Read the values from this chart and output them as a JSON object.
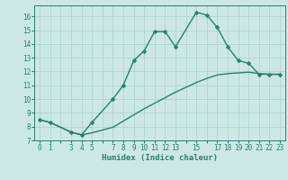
{
  "xlabel": "Humidex (Indice chaleur)",
  "bg_color": "#cce8e5",
  "line_color": "#2d7d72",
  "markersize": 2.5,
  "linewidth": 1.0,
  "series1_x": [
    0,
    1,
    3,
    4,
    5,
    7,
    8,
    9,
    10,
    11,
    12,
    13,
    15,
    16,
    17,
    18,
    19,
    20,
    21,
    22,
    23
  ],
  "series1_y": [
    8.5,
    8.3,
    7.6,
    7.4,
    8.3,
    10.0,
    11.0,
    12.8,
    13.5,
    14.9,
    14.9,
    13.8,
    16.3,
    16.1,
    15.2,
    13.8,
    12.8,
    12.6,
    11.8,
    11.8,
    11.8
  ],
  "series2_x": [
    0,
    1,
    3,
    4,
    5,
    7,
    8,
    9,
    10,
    11,
    12,
    13,
    15,
    16,
    17,
    18,
    19,
    20,
    21,
    22,
    23
  ],
  "series2_y": [
    8.5,
    8.3,
    7.6,
    7.4,
    7.55,
    7.95,
    8.4,
    8.85,
    9.3,
    9.7,
    10.1,
    10.5,
    11.2,
    11.5,
    11.75,
    11.85,
    11.9,
    11.95,
    11.85,
    11.8,
    11.8
  ],
  "xlim": [
    -0.5,
    23.5
  ],
  "ylim": [
    7,
    16.8
  ],
  "ytick_vals": [
    7,
    8,
    9,
    10,
    11,
    12,
    13,
    14,
    15,
    16
  ],
  "ytick_labels": [
    "7",
    "8",
    "9",
    "10",
    "11",
    "12",
    "13",
    "14",
    "15",
    "16"
  ],
  "xtick_vals": [
    0,
    1,
    2,
    3,
    4,
    5,
    6,
    7,
    8,
    9,
    10,
    11,
    12,
    13,
    14,
    15,
    16,
    17,
    18,
    19,
    20,
    21,
    22,
    23
  ],
  "xtick_show": [
    0,
    1,
    3,
    4,
    5,
    7,
    8,
    9,
    10,
    11,
    12,
    13,
    15,
    17,
    18,
    19,
    20,
    21,
    22,
    23
  ],
  "grid_color": "#aacfcb",
  "tick_fontsize": 5.5,
  "label_fontsize": 6.5
}
